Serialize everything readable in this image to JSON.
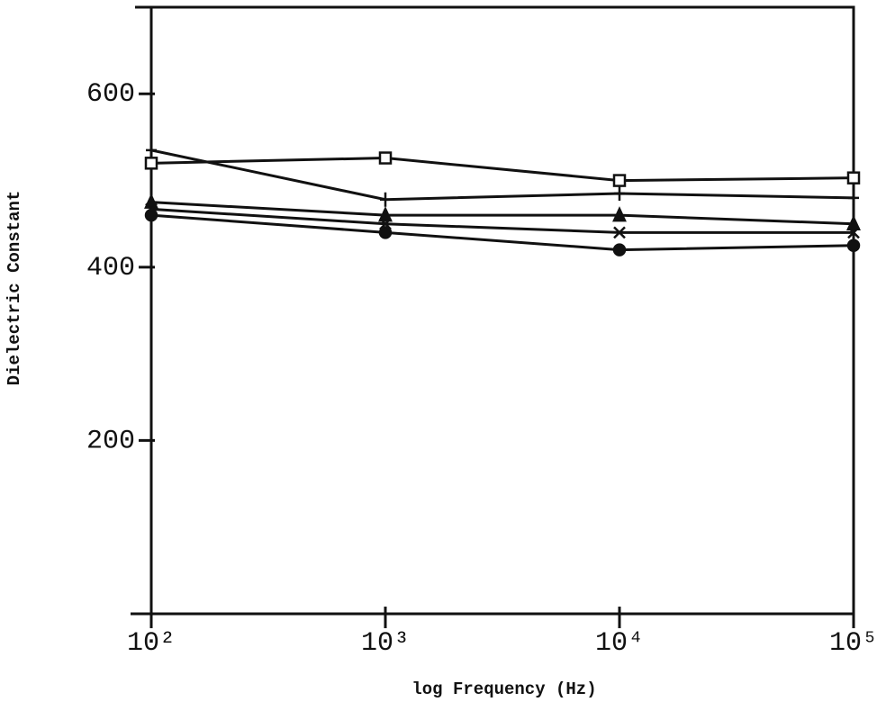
{
  "chart_data": {
    "type": "line",
    "x_label": "log Frequency (Hz)",
    "y_label": "Dielectric Constant",
    "x": [
      100,
      1000,
      10000,
      100000
    ],
    "xscale": "log",
    "xlim": [
      100,
      100000
    ],
    "xticks": [
      {
        "value": 100,
        "label": "10²"
      },
      {
        "value": 1000,
        "label": "10³"
      },
      {
        "value": 10000,
        "label": "10⁴"
      },
      {
        "value": 100000,
        "label": "10⁵"
      }
    ],
    "ylim": [
      0,
      700
    ],
    "yticks": [
      200,
      400,
      600
    ],
    "grid": false,
    "series": [
      {
        "marker": "square",
        "color": "#111111",
        "values": [
          520,
          526,
          500,
          503
        ]
      },
      {
        "marker": "plus",
        "color": "#111111",
        "values": [
          535,
          478,
          485,
          480
        ]
      },
      {
        "marker": "triangle",
        "color": "#111111",
        "values": [
          475,
          460,
          460,
          450
        ]
      },
      {
        "marker": "x",
        "color": "#111111",
        "values": [
          467,
          450,
          440,
          440
        ]
      },
      {
        "marker": "circle",
        "color": "#111111",
        "values": [
          460,
          440,
          420,
          425
        ]
      }
    ]
  }
}
